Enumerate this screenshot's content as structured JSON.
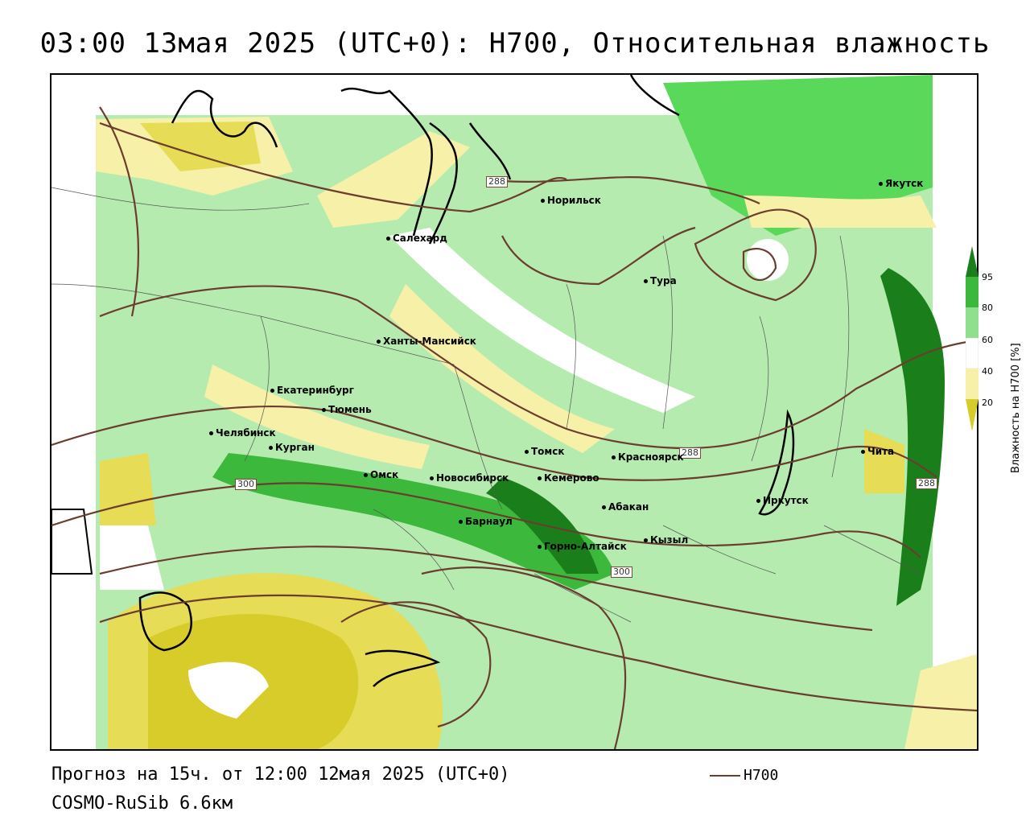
{
  "title": "03:00 13мая 2025 (UTC+0): H700, Относительная влажность",
  "footer": {
    "forecast": "Прогноз на 15ч. от 12:00 12мая 2025 (UTC+0)",
    "model": "COSMO-RuSib 6.6км"
  },
  "legend": {
    "line_label": "H700",
    "line_color": "#6b3d2e"
  },
  "colorbar": {
    "title": "Влажность на H700 [%]",
    "ticks": [
      "95",
      "80",
      "60",
      "40",
      "20"
    ],
    "colors": [
      "#1a7f1a",
      "#3cb83c",
      "#8fdf8f",
      "#ffffff",
      "#f7f0a8",
      "#d8cc2a"
    ]
  },
  "isoline_labels": [
    "288",
    "288",
    "288",
    "300",
    "300"
  ],
  "cities": [
    {
      "name": "Норильск"
    },
    {
      "name": "Якутск"
    },
    {
      "name": "Салехард"
    },
    {
      "name": "Тура"
    },
    {
      "name": "Ханты-Мансийск"
    },
    {
      "name": "Екатеринбург"
    },
    {
      "name": "Тюмень"
    },
    {
      "name": "Челябинск"
    },
    {
      "name": "Курган"
    },
    {
      "name": "Омск"
    },
    {
      "name": "Новосибирск"
    },
    {
      "name": "Томск"
    },
    {
      "name": "Кемерово"
    },
    {
      "name": "Красноярск"
    },
    {
      "name": "Барнаул"
    },
    {
      "name": "Абакан"
    },
    {
      "name": "Горно-Алтайск"
    },
    {
      "name": "Кызыл"
    },
    {
      "name": "Иркутск"
    },
    {
      "name": "Чита"
    }
  ]
}
